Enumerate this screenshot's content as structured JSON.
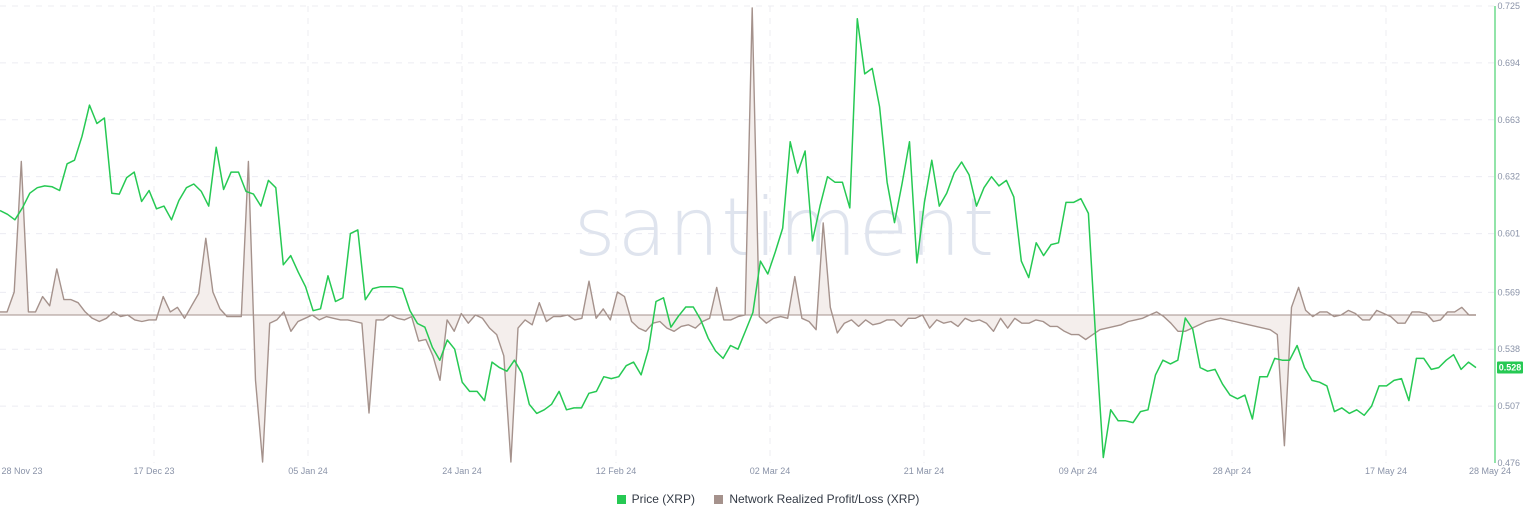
{
  "watermark": "santiment",
  "legend": {
    "price_label": "Price (XRP)",
    "pnl_label": "Network Realized Profit/Loss (XRP)"
  },
  "colors": {
    "price": "#26c953",
    "pnl": "#a5928c",
    "pnl_fill": "#f4eeec",
    "badge": "#26c953"
  },
  "chart_data": {
    "type": "line",
    "x_ticks": [
      "28 Nov 23",
      "17 Dec 23",
      "05 Jan 24",
      "24 Jan 24",
      "12 Feb 24",
      "02 Mar 24",
      "21 Mar 24",
      "09 Apr 24",
      "28 Apr 24",
      "17 May 24",
      "28 May 24"
    ],
    "y_ticks": [
      "0.476",
      "0.507",
      "0.538",
      "0.569",
      "0.601",
      "0.632",
      "0.663",
      "0.694",
      "0.725"
    ],
    "ylim": [
      0.476,
      0.725
    ],
    "last_value_label": "0.528",
    "series": [
      {
        "name": "Price (XRP)",
        "axis": "right",
        "values": [
          0.6135,
          0.6115,
          0.6085,
          0.615,
          0.623,
          0.626,
          0.627,
          0.6265,
          0.6245,
          0.639,
          0.641,
          0.654,
          0.671,
          0.661,
          0.664,
          0.623,
          0.6225,
          0.6315,
          0.6345,
          0.6185,
          0.6245,
          0.6145,
          0.616,
          0.6085,
          0.619,
          0.626,
          0.628,
          0.624,
          0.616,
          0.648,
          0.625,
          0.6345,
          0.6345,
          0.624,
          0.6225,
          0.616,
          0.63,
          0.626,
          0.584,
          0.589,
          0.58,
          0.572,
          0.559,
          0.56,
          0.578,
          0.564,
          0.566,
          0.601,
          0.603,
          0.565,
          0.571,
          0.572,
          0.572,
          0.572,
          0.571,
          0.559,
          0.552,
          0.55,
          0.539,
          0.532,
          0.543,
          0.538,
          0.52,
          0.515,
          0.515,
          0.51,
          0.531,
          0.528,
          0.526,
          0.532,
          0.525,
          0.508,
          0.503,
          0.505,
          0.508,
          0.515,
          0.505,
          0.506,
          0.506,
          0.514,
          0.515,
          0.523,
          0.522,
          0.523,
          0.529,
          0.531,
          0.524,
          0.538,
          0.564,
          0.566,
          0.55,
          0.556,
          0.561,
          0.561,
          0.554,
          0.544,
          0.537,
          0.533,
          0.54,
          0.538,
          0.548,
          0.558,
          0.586,
          0.579,
          0.591,
          0.604,
          0.651,
          0.634,
          0.646,
          0.597,
          0.616,
          0.632,
          0.629,
          0.629,
          0.615,
          0.718,
          0.688,
          0.691,
          0.67,
          0.629,
          0.607,
          0.628,
          0.651,
          0.585,
          0.618,
          0.641,
          0.616,
          0.623,
          0.634,
          0.64,
          0.633,
          0.616,
          0.626,
          0.632,
          0.627,
          0.63,
          0.621,
          0.586,
          0.577,
          0.596,
          0.589,
          0.595,
          0.596,
          0.618,
          0.618,
          0.62,
          0.612,
          0.543,
          0.479,
          0.505,
          0.499,
          0.499,
          0.498,
          0.504,
          0.505,
          0.524,
          0.532,
          0.53,
          0.532,
          0.555,
          0.549,
          0.528,
          0.526,
          0.527,
          0.519,
          0.513,
          0.511,
          0.513,
          0.5,
          0.523,
          0.523,
          0.533,
          0.532,
          0.532,
          0.54,
          0.528,
          0.521,
          0.52,
          0.518,
          0.504,
          0.506,
          0.503,
          0.505,
          0.502,
          0.507,
          0.518,
          0.518,
          0.521,
          0.522,
          0.51,
          0.533,
          0.533,
          0.527,
          0.528,
          0.532,
          0.535,
          0.527,
          0.531,
          0.528
        ]
      },
      {
        "name": "Network Realized Profit/Loss (XRP)",
        "axis": "hidden",
        "zero_value": 0,
        "values": [
          2,
          2,
          15,
          100,
          2,
          2,
          12,
          6,
          30,
          10,
          10,
          8,
          2,
          -2,
          -4,
          -2,
          2,
          -1,
          0,
          -3,
          -4,
          -3,
          -3,
          12,
          2,
          5,
          -2,
          6,
          14,
          50,
          15,
          4,
          -1,
          -1,
          -1,
          100,
          -40,
          -90,
          -5,
          -3,
          2,
          -10,
          -4,
          -2,
          0,
          -3,
          -1,
          -2,
          -3,
          -3,
          -4,
          -5,
          -60,
          -3,
          -3,
          0,
          -2,
          -3,
          -1,
          -16,
          -15,
          -25,
          -40,
          -3,
          -10,
          1,
          -5,
          0,
          -2,
          -8,
          -12,
          -25,
          -90,
          -8,
          -3,
          -6,
          8,
          -4,
          -1,
          -1,
          0,
          -3,
          -2,
          22,
          -2,
          4,
          -3,
          15,
          12,
          -4,
          -8,
          -10,
          -5,
          -4,
          -8,
          -10,
          -7,
          -6,
          -8,
          -4,
          -2,
          18,
          -3,
          -3,
          -1,
          0,
          200,
          -1,
          -5,
          -2,
          -1,
          -2,
          25,
          -2,
          -4,
          -9,
          60,
          5,
          -11,
          -5,
          -3,
          -7,
          -3,
          -6,
          -5,
          -3,
          -3,
          -7,
          -2,
          -2,
          0,
          -8,
          -3,
          -5,
          -4,
          -7,
          -2,
          -4,
          -3,
          -5,
          -10,
          -2,
          -8,
          -2,
          -5,
          -5,
          -3,
          -4,
          -7,
          -7,
          -10,
          -12,
          -12,
          -15,
          -12,
          -9,
          -8,
          -7,
          -6,
          -4,
          -3,
          -2,
          0,
          2,
          -1,
          -5,
          -10,
          -10,
          -8,
          -6,
          -4,
          -3,
          -2,
          -3,
          -4,
          -5,
          -6,
          -7,
          -8,
          -9,
          -12,
          -80,
          5,
          18,
          3,
          -1,
          2,
          2,
          -1,
          0,
          3,
          1,
          -3,
          -3,
          3,
          1,
          -1,
          -5,
          -5,
          2,
          2,
          1,
          -4,
          -3,
          2,
          2,
          5,
          0,
          0
        ]
      }
    ]
  }
}
